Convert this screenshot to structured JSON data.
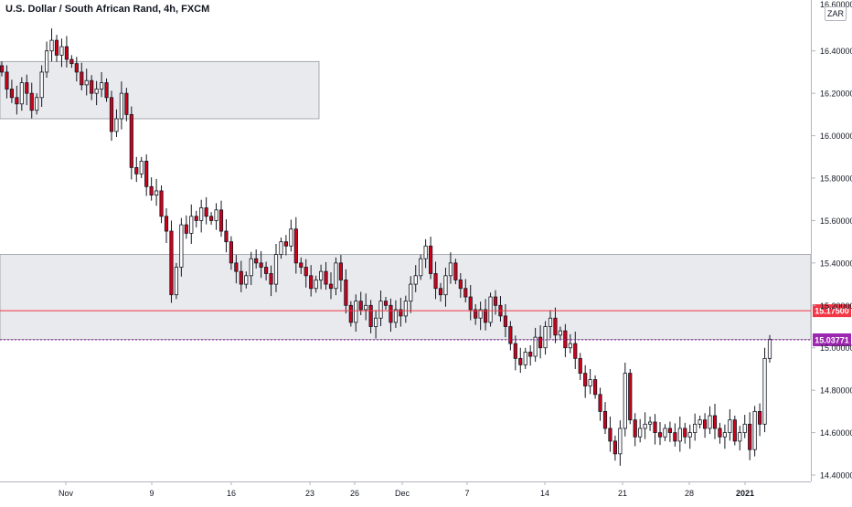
{
  "chart_data": {
    "type": "candlestick",
    "title": "U.S. Dollar / South African Rand, 4h, FXCM",
    "currency_badge": "ZAR",
    "y_ticks": [
      "16.40000",
      "16.20000",
      "16.00000",
      "15.80000",
      "15.60000",
      "15.40000",
      "15.20000",
      "15.00000",
      "14.80000",
      "14.60000",
      "14.40000"
    ],
    "y_top_label": "16.60000",
    "ylim": [
      14.37,
      16.64
    ],
    "x_ticks": [
      "Nov",
      "9",
      "16",
      "23",
      "26",
      "Dec",
      "7",
      "14",
      "21",
      "28",
      "2021"
    ],
    "zones": [
      {
        "y_top": 16.35,
        "y_bottom": 16.08
      },
      {
        "y_top": 15.44,
        "y_bottom": 15.04
      }
    ],
    "lines": [
      {
        "value": 15.175,
        "label": "15.17500",
        "color": "#f23645",
        "style": "solid"
      },
      {
        "value": 15.03771,
        "label": "15.03771",
        "color": "#9c27b0",
        "style": "dotted"
      }
    ],
    "closes": [
      16.3,
      16.22,
      16.18,
      16.15,
      16.25,
      16.2,
      16.12,
      16.18,
      16.3,
      16.4,
      16.45,
      16.38,
      16.42,
      16.36,
      16.34,
      16.3,
      16.24,
      16.26,
      16.2,
      16.22,
      16.25,
      16.18,
      16.02,
      16.08,
      16.2,
      16.1,
      15.85,
      15.82,
      15.88,
      15.76,
      15.72,
      15.74,
      15.62,
      15.55,
      15.25,
      15.38,
      15.58,
      15.54,
      15.62,
      15.6,
      15.66,
      15.62,
      15.6,
      15.65,
      15.55,
      15.5,
      15.4,
      15.36,
      15.3,
      15.34,
      15.42,
      15.4,
      15.38,
      15.35,
      15.3,
      15.44,
      15.5,
      15.48,
      15.56,
      15.4,
      15.38,
      15.34,
      15.28,
      15.32,
      15.36,
      15.3,
      15.28,
      15.4,
      15.32,
      15.2,
      15.12,
      15.22,
      15.18,
      15.2,
      15.1,
      15.14,
      15.22,
      15.2,
      15.12,
      15.18,
      15.15,
      15.22,
      15.3,
      15.34,
      15.42,
      15.48,
      15.35,
      15.28,
      15.25,
      15.34,
      15.4,
      15.32,
      15.28,
      15.24,
      15.18,
      15.14,
      15.18,
      15.12,
      15.24,
      15.2,
      15.15,
      15.1,
      15.02,
      14.95,
      14.92,
      14.98,
      14.96,
      15.05,
      15.0,
      15.1,
      15.14,
      15.06,
      15.08,
      15.0,
      15.02,
      14.95,
      14.88,
      14.82,
      14.85,
      14.78,
      14.7,
      14.62,
      14.56,
      14.5,
      14.62,
      14.88,
      14.66,
      14.58,
      14.62,
      14.64,
      14.65,
      14.6,
      14.58,
      14.62,
      14.6,
      14.56,
      14.62,
      14.58,
      14.6,
      14.64,
      14.66,
      14.62,
      14.68,
      14.62,
      14.58,
      14.6,
      14.66,
      14.56,
      14.6,
      14.64,
      14.52,
      14.7,
      14.64,
      14.95,
      15.04
    ]
  }
}
